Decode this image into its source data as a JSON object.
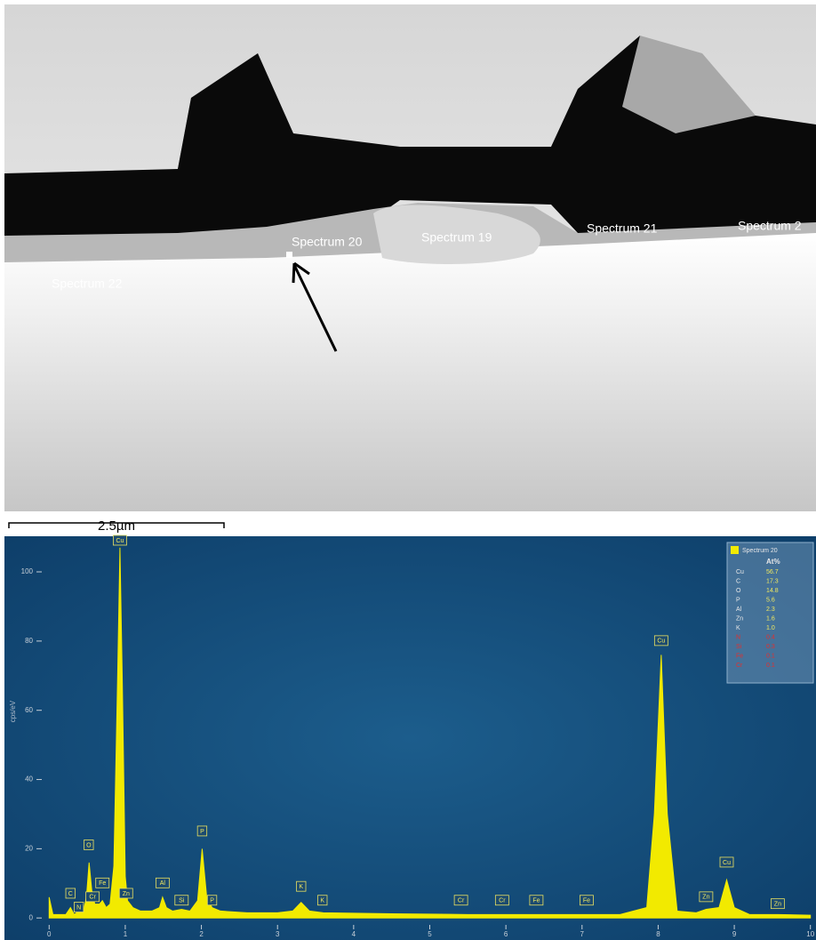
{
  "image": {
    "labels": [
      "Spectrum 20",
      "Spectrum 19",
      "Spectrum 21",
      "Spectrum 2",
      "Spectrum 22"
    ],
    "scale_bar": "2.5µm"
  },
  "chart_data": {
    "type": "area",
    "y_label": "cps/eV",
    "x": [
      0,
      0.05,
      0.15,
      0.22,
      0.28,
      0.33,
      0.39,
      0.45,
      0.49,
      0.525,
      0.56,
      0.6,
      0.66,
      0.7,
      0.75,
      0.8,
      0.85,
      0.9,
      0.93,
      0.96,
      1.0,
      1.03,
      1.1,
      1.2,
      1.35,
      1.45,
      1.49,
      1.54,
      1.62,
      1.74,
      1.85,
      1.95,
      2.01,
      2.07,
      2.14,
      2.25,
      2.6,
      3.0,
      3.2,
      3.31,
      3.42,
      3.6,
      4.5,
      5.5,
      6.4,
      7.5,
      7.85,
      7.95,
      8.04,
      8.12,
      8.25,
      8.5,
      8.63,
      8.8,
      8.9,
      9.0,
      9.2,
      9.57,
      10.0
    ],
    "series": [
      {
        "name": "Spectrum 20",
        "color": "#f2ea00",
        "values": [
          6,
          1,
          1,
          1,
          3,
          1,
          2,
          2,
          6,
          16,
          8,
          4,
          4,
          5,
          3,
          4,
          15,
          70,
          107,
          70,
          12,
          5,
          3,
          2,
          2,
          3,
          6,
          3,
          2,
          2.5,
          2,
          5,
          20,
          6,
          3,
          2,
          1.5,
          1.5,
          2,
          4.5,
          2,
          1.5,
          1.2,
          1,
          1,
          1,
          3,
          30,
          76,
          30,
          2,
          1.5,
          2.5,
          3,
          11,
          3,
          1,
          1,
          0.8
        ]
      }
    ],
    "xlim": [
      -0.12,
      10.05
    ],
    "ylim": [
      -2,
      109
    ],
    "xticks": [
      0,
      1,
      2,
      3,
      4,
      5,
      6,
      7,
      8,
      9,
      10
    ],
    "yticks": [
      0,
      20,
      40,
      60,
      80,
      100
    ],
    "peak_labels": [
      {
        "label": "C",
        "x": 0.28,
        "y": 7
      },
      {
        "label": "N",
        "x": 0.39,
        "y": 3
      },
      {
        "label": "O",
        "x": 0.52,
        "y": 21
      },
      {
        "label": "Cr",
        "x": 0.57,
        "y": 6
      },
      {
        "label": "Fe",
        "x": 0.7,
        "y": 10
      },
      {
        "label": "Cu",
        "x": 0.93,
        "y": 109
      },
      {
        "label": "Zn",
        "x": 1.01,
        "y": 7
      },
      {
        "label": "Al",
        "x": 1.49,
        "y": 10
      },
      {
        "label": "Si",
        "x": 1.74,
        "y": 5
      },
      {
        "label": "P",
        "x": 2.01,
        "y": 25
      },
      {
        "label": "P",
        "x": 2.14,
        "y": 5
      },
      {
        "label": "K",
        "x": 3.31,
        "y": 9
      },
      {
        "label": "K",
        "x": 3.59,
        "y": 5
      },
      {
        "label": "Cr",
        "x": 5.41,
        "y": 5
      },
      {
        "label": "Cr",
        "x": 5.95,
        "y": 5
      },
      {
        "label": "Fe",
        "x": 6.4,
        "y": 5
      },
      {
        "label": "Fe",
        "x": 7.06,
        "y": 5
      },
      {
        "label": "Cu",
        "x": 8.04,
        "y": 80
      },
      {
        "label": "Zn",
        "x": 8.63,
        "y": 6
      },
      {
        "label": "Cu",
        "x": 8.9,
        "y": 16
      },
      {
        "label": "Zn",
        "x": 9.57,
        "y": 4
      }
    ],
    "legend_table": {
      "title": "Spectrum 20",
      "header": "At%",
      "rows": [
        {
          "element": "Cu",
          "value": "56.7",
          "color": "#e8e8e8"
        },
        {
          "element": "C",
          "value": "17.3",
          "color": "#e8e8e8"
        },
        {
          "element": "O",
          "value": "14.8",
          "color": "#e8e8e8"
        },
        {
          "element": "P",
          "value": "5.6",
          "color": "#e8e8e8"
        },
        {
          "element": "Al",
          "value": "2.3",
          "color": "#e8e8e8"
        },
        {
          "element": "Zn",
          "value": "1.6",
          "color": "#e8e8e8"
        },
        {
          "element": "K",
          "value": "1.0",
          "color": "#e8e8e8"
        },
        {
          "element": "N",
          "value": "0.4",
          "color": "#e03030"
        },
        {
          "element": "Si",
          "value": "0.3",
          "color": "#e03030"
        },
        {
          "element": "Fe",
          "value": "0.1",
          "color": "#e03030"
        },
        {
          "element": "Cr",
          "value": "0.1",
          "color": "#e03030"
        }
      ]
    }
  }
}
